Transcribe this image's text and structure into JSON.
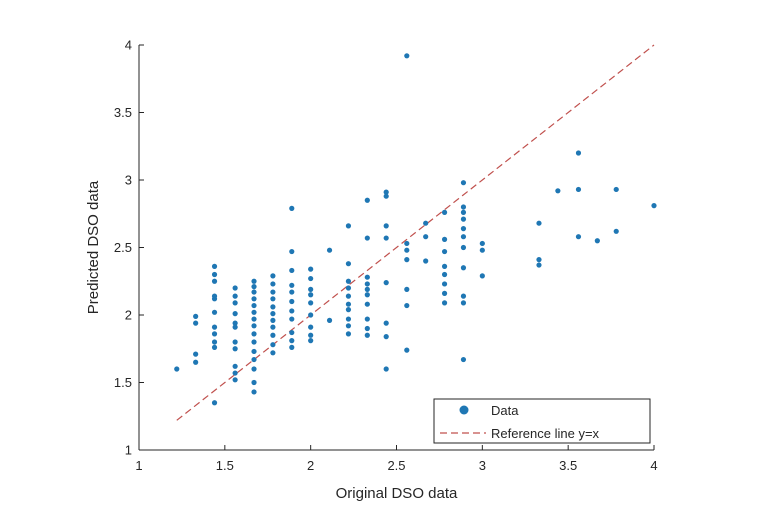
{
  "chart_data": {
    "type": "scatter",
    "title": "",
    "xlabel": "Original DSO data",
    "ylabel": "Predicted DSO data",
    "xlim": [
      1,
      4
    ],
    "ylim": [
      1,
      4
    ],
    "xticks": [
      "1",
      "1.5",
      "2",
      "2.5",
      "3",
      "3.5",
      "4"
    ],
    "yticks": [
      "1",
      "1.5",
      "2",
      "2.5",
      "3",
      "3.5",
      "4"
    ],
    "grid": false,
    "legend_position": "bottom-right",
    "colors": {
      "data": "#1f77b4",
      "reference": "#c0504d",
      "axis": "#262626"
    },
    "series": [
      {
        "name": "Data",
        "kind": "scatter",
        "points": [
          [
            1.22,
            1.6
          ],
          [
            1.33,
            1.65
          ],
          [
            1.33,
            1.71
          ],
          [
            1.33,
            1.94
          ],
          [
            1.33,
            1.99
          ],
          [
            1.44,
            1.35
          ],
          [
            1.44,
            1.76
          ],
          [
            1.44,
            1.8
          ],
          [
            1.44,
            1.86
          ],
          [
            1.44,
            1.91
          ],
          [
            1.44,
            2.02
          ],
          [
            1.44,
            2.12
          ],
          [
            1.44,
            2.14
          ],
          [
            1.44,
            2.25
          ],
          [
            1.44,
            2.3
          ],
          [
            1.44,
            2.36
          ],
          [
            1.56,
            1.52
          ],
          [
            1.56,
            1.57
          ],
          [
            1.56,
            1.62
          ],
          [
            1.56,
            1.75
          ],
          [
            1.56,
            1.8
          ],
          [
            1.56,
            1.91
          ],
          [
            1.56,
            1.94
          ],
          [
            1.56,
            2.01
          ],
          [
            1.56,
            2.09
          ],
          [
            1.56,
            2.14
          ],
          [
            1.56,
            2.2
          ],
          [
            1.67,
            1.43
          ],
          [
            1.67,
            1.5
          ],
          [
            1.67,
            1.6
          ],
          [
            1.67,
            1.67
          ],
          [
            1.67,
            1.73
          ],
          [
            1.67,
            1.8
          ],
          [
            1.67,
            1.86
          ],
          [
            1.67,
            1.92
          ],
          [
            1.67,
            1.97
          ],
          [
            1.67,
            2.02
          ],
          [
            1.67,
            2.07
          ],
          [
            1.67,
            2.12
          ],
          [
            1.67,
            2.17
          ],
          [
            1.67,
            2.21
          ],
          [
            1.67,
            2.25
          ],
          [
            1.78,
            1.72
          ],
          [
            1.78,
            1.78
          ],
          [
            1.78,
            1.85
          ],
          [
            1.78,
            1.91
          ],
          [
            1.78,
            1.96
          ],
          [
            1.78,
            2.01
          ],
          [
            1.78,
            2.06
          ],
          [
            1.78,
            2.12
          ],
          [
            1.78,
            2.17
          ],
          [
            1.78,
            2.23
          ],
          [
            1.78,
            2.29
          ],
          [
            1.89,
            1.76
          ],
          [
            1.89,
            1.81
          ],
          [
            1.89,
            1.87
          ],
          [
            1.89,
            1.97
          ],
          [
            1.89,
            2.03
          ],
          [
            1.89,
            2.1
          ],
          [
            1.89,
            2.17
          ],
          [
            1.89,
            2.22
          ],
          [
            1.89,
            2.33
          ],
          [
            1.89,
            2.47
          ],
          [
            1.89,
            2.79
          ],
          [
            2.0,
            1.81
          ],
          [
            2.0,
            1.85
          ],
          [
            2.0,
            1.91
          ],
          [
            2.0,
            2.0
          ],
          [
            2.0,
            2.09
          ],
          [
            2.0,
            2.15
          ],
          [
            2.0,
            2.19
          ],
          [
            2.0,
            2.27
          ],
          [
            2.0,
            2.34
          ],
          [
            2.11,
            1.96
          ],
          [
            2.11,
            2.48
          ],
          [
            2.22,
            1.86
          ],
          [
            2.22,
            1.92
          ],
          [
            2.22,
            1.97
          ],
          [
            2.22,
            2.04
          ],
          [
            2.22,
            2.08
          ],
          [
            2.22,
            2.14
          ],
          [
            2.22,
            2.2
          ],
          [
            2.22,
            2.25
          ],
          [
            2.22,
            2.38
          ],
          [
            2.22,
            2.66
          ],
          [
            2.33,
            1.85
          ],
          [
            2.33,
            1.9
          ],
          [
            2.33,
            1.97
          ],
          [
            2.33,
            2.08
          ],
          [
            2.33,
            2.15
          ],
          [
            2.33,
            2.19
          ],
          [
            2.33,
            2.23
          ],
          [
            2.33,
            2.28
          ],
          [
            2.33,
            2.57
          ],
          [
            2.33,
            2.85
          ],
          [
            2.44,
            1.6
          ],
          [
            2.44,
            1.84
          ],
          [
            2.44,
            1.94
          ],
          [
            2.44,
            2.24
          ],
          [
            2.44,
            2.57
          ],
          [
            2.44,
            2.66
          ],
          [
            2.44,
            2.88
          ],
          [
            2.44,
            2.91
          ],
          [
            2.56,
            1.74
          ],
          [
            2.56,
            2.07
          ],
          [
            2.56,
            2.19
          ],
          [
            2.56,
            2.41
          ],
          [
            2.56,
            2.48
          ],
          [
            2.56,
            2.53
          ],
          [
            2.56,
            3.92
          ],
          [
            2.67,
            2.4
          ],
          [
            2.67,
            2.58
          ],
          [
            2.67,
            2.68
          ],
          [
            2.78,
            2.09
          ],
          [
            2.78,
            2.16
          ],
          [
            2.78,
            2.23
          ],
          [
            2.78,
            2.3
          ],
          [
            2.78,
            2.36
          ],
          [
            2.78,
            2.47
          ],
          [
            2.78,
            2.56
          ],
          [
            2.78,
            2.76
          ],
          [
            2.89,
            1.67
          ],
          [
            2.89,
            2.09
          ],
          [
            2.89,
            2.14
          ],
          [
            2.89,
            2.35
          ],
          [
            2.89,
            2.5
          ],
          [
            2.89,
            2.58
          ],
          [
            2.89,
            2.64
          ],
          [
            2.89,
            2.71
          ],
          [
            2.89,
            2.76
          ],
          [
            2.89,
            2.8
          ],
          [
            2.89,
            2.98
          ],
          [
            3.0,
            2.29
          ],
          [
            3.0,
            2.48
          ],
          [
            3.0,
            2.53
          ],
          [
            3.33,
            2.37
          ],
          [
            3.33,
            2.41
          ],
          [
            3.33,
            2.68
          ],
          [
            3.44,
            2.92
          ],
          [
            3.56,
            2.58
          ],
          [
            3.56,
            2.93
          ],
          [
            3.56,
            3.2
          ],
          [
            3.67,
            2.55
          ],
          [
            3.78,
            2.62
          ],
          [
            3.78,
            2.93
          ],
          [
            4.0,
            2.81
          ]
        ]
      },
      {
        "name": "Reference line y=x",
        "kind": "line",
        "x": [
          1.22,
          4.0
        ],
        "y": [
          1.22,
          4.0
        ],
        "style": "dashed"
      }
    ]
  }
}
